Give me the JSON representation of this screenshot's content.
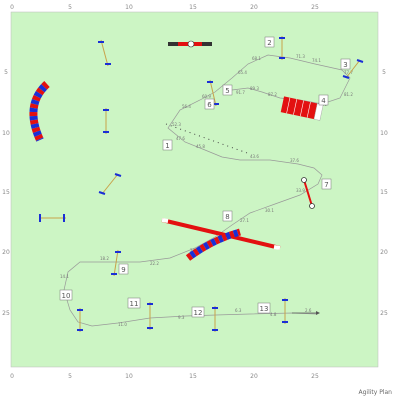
{
  "arena": {
    "background": "#ccf5c4",
    "border": "#bbbbbb"
  },
  "x_axis_ticks": [
    "0",
    "5",
    "10",
    "15",
    "20",
    "25"
  ],
  "y_axis_ticks": [
    "5",
    "10",
    "15",
    "20",
    "25"
  ],
  "path_distances": [
    "2.6",
    "4.8",
    "6.3",
    "9.3",
    "11.0",
    "14.1",
    "18.2",
    "22.2",
    "24.1",
    "27.1",
    "30.1",
    "33.9",
    "37.6",
    "43.6",
    "45.8",
    "47.6",
    "52.3",
    "56.4",
    "60.9",
    "65.4",
    "68.1",
    "71.3",
    "74.1",
    "77.7",
    "81.2",
    "85.1",
    "87.2",
    "89.3",
    "91.7"
  ],
  "obstacle_numbers": [
    "1",
    "2",
    "3",
    "4",
    "5",
    "6",
    "7",
    "8",
    "9",
    "10",
    "11",
    "12",
    "13"
  ],
  "obstacles": {
    "jump": "jump-icon",
    "tire": "tire-icon",
    "tunnel": "tunnel-icon",
    "weave": "weave-poles-icon",
    "seesaw": "seesaw-icon",
    "wall": "wall-icon",
    "pole": "pole-jump-icon"
  },
  "colors": {
    "blue": "#1a2fd6",
    "red": "#e31010",
    "path": "#888888",
    "pole": "#c8a24a"
  },
  "credit": "Agility Plan"
}
